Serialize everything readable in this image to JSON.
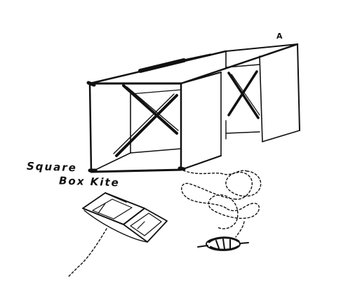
{
  "diagram": {
    "caption_line_1": "Square",
    "caption_line_2": "Box Kite",
    "marker_label": "A",
    "ink_color": "#111111",
    "paper_color": "#ffffff"
  }
}
